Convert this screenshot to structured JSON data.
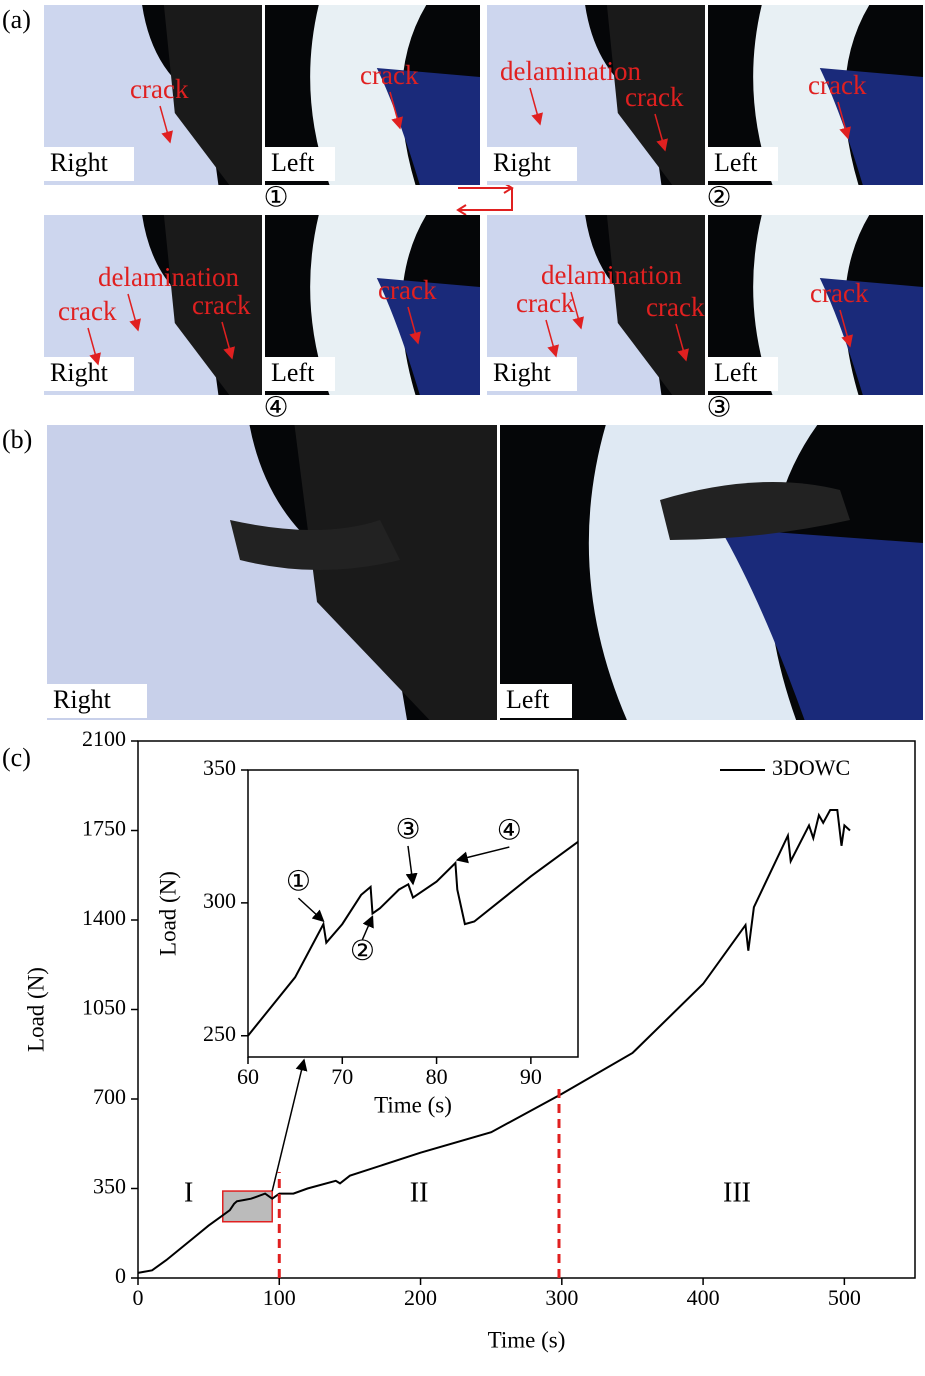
{
  "panel_a": {
    "label": "(a)",
    "photos": [
      {
        "number": "①",
        "texts": [
          "Right",
          "Left",
          "crack",
          "crack"
        ]
      },
      {
        "number": "②",
        "texts": [
          "Right",
          "Left",
          "delamination",
          "crack",
          "crack"
        ]
      },
      {
        "number": "④",
        "texts": [
          "Right",
          "Left",
          "delamination",
          "crack",
          "crack",
          "crack"
        ]
      },
      {
        "number": "③",
        "texts": [
          "Right",
          "Left",
          "delamination",
          "crack",
          "crack",
          "crack"
        ]
      }
    ]
  },
  "panel_b": {
    "label": "(b)",
    "texts": [
      "Right",
      "Left"
    ]
  },
  "panel_c": {
    "label": "(c)"
  },
  "chart_data": [
    {
      "type": "line",
      "xlabel": "Time (s)",
      "ylabel": "Load (N)",
      "xlim": [
        0,
        550
      ],
      "ylim": [
        0,
        2100
      ],
      "xticks": [
        0,
        100,
        200,
        300,
        400,
        500
      ],
      "yticks": [
        0,
        350,
        700,
        1050,
        1400,
        1750,
        2100
      ],
      "series": [
        {
          "name": "3DOWC",
          "color": "#000000",
          "x": [
            0,
            10,
            20,
            30,
            40,
            50,
            60,
            65,
            68,
            70,
            75,
            80,
            85,
            90,
            95,
            100,
            110,
            120,
            140,
            143,
            150,
            200,
            250,
            300,
            350,
            400,
            430,
            432,
            436,
            460,
            462,
            475,
            478,
            482,
            485,
            490,
            495,
            498,
            500,
            504
          ],
          "values": [
            20,
            30,
            70,
            115,
            160,
            205,
            245,
            265,
            290,
            300,
            305,
            310,
            320,
            330,
            310,
            330,
            330,
            350,
            380,
            370,
            400,
            490,
            570,
            720,
            880,
            1150,
            1380,
            1280,
            1450,
            1730,
            1630,
            1770,
            1720,
            1810,
            1780,
            1830,
            1830,
            1690,
            1770,
            1750
          ]
        }
      ],
      "stages": [
        "I",
        "II",
        "III"
      ],
      "stage_boundaries": [
        100,
        298
      ],
      "highlight": {
        "x": [
          60,
          95
        ],
        "y": [
          220,
          340
        ]
      }
    },
    {
      "type": "line",
      "xlabel": "Time (s)",
      "ylabel": "Load (N)",
      "xlim": [
        60,
        95
      ],
      "ylim": [
        242,
        350
      ],
      "xticks": [
        60,
        70,
        80,
        90
      ],
      "yticks": [
        250,
        300,
        350
      ],
      "series": [
        {
          "name": null,
          "color": "#000000",
          "x": [
            60,
            65,
            68,
            68.3,
            70,
            72,
            73,
            73.2,
            74,
            76,
            77,
            77.5,
            80,
            82,
            82.2,
            83,
            84,
            90,
            95
          ],
          "values": [
            250,
            272,
            292,
            285,
            292,
            303,
            306,
            296,
            298,
            305,
            307,
            302,
            308,
            315,
            305,
            292,
            293,
            310,
            323
          ]
        }
      ],
      "markers": [
        {
          "label": "①",
          "x": 68,
          "y": 292
        },
        {
          "label": "②",
          "x": 73.2,
          "y": 296
        },
        {
          "label": "③",
          "x": 77.5,
          "y": 306
        },
        {
          "label": "④",
          "x": 82.2,
          "y": 315
        }
      ]
    }
  ]
}
